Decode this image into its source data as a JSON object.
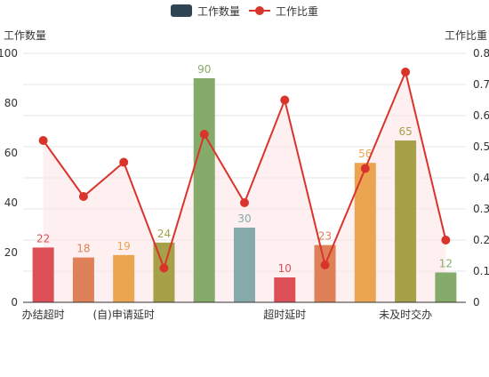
{
  "chart_data": {
    "type": "bar",
    "title": "",
    "legend_position": "top-center",
    "grid": true,
    "categories": [
      "办结超时",
      "",
      "(自)申请延时",
      "",
      "",
      "",
      "超时延时",
      "",
      "",
      "未及时交办",
      ""
    ],
    "legend": [
      {
        "name": "工作数量",
        "kind": "bar",
        "color": "#2f4554"
      },
      {
        "name": "工作比重",
        "kind": "line",
        "color": "#d9342b"
      }
    ],
    "y_left": {
      "label": "工作数量",
      "min": 0,
      "max": 100,
      "ticks": [
        "0",
        "20",
        "40",
        "60",
        "80",
        "100"
      ]
    },
    "y_right": {
      "label": "工作比重",
      "min": 0,
      "max": 0.8,
      "ticks": [
        "0",
        "0.1",
        "0.2",
        "0.3",
        "0.4",
        "0.5",
        "0.6",
        "0.7",
        "0.8"
      ]
    },
    "series": [
      {
        "name": "工作数量",
        "type": "bar",
        "axis": "left",
        "values": [
          22,
          18,
          19,
          24,
          90,
          30,
          10,
          23,
          56,
          65,
          12
        ],
        "labels": [
          "22",
          "18",
          "19",
          "24",
          "90",
          "30",
          "10",
          "23",
          "56",
          "65",
          "12"
        ],
        "colors": [
          "#dd4f57",
          "#df8158",
          "#eba450",
          "#a6a048",
          "#85ab6a",
          "#86a9aa",
          "#dd4f57",
          "#df8158",
          "#eba450",
          "#a6a048",
          "#85ab6a"
        ]
      },
      {
        "name": "工作比重",
        "type": "line",
        "axis": "right",
        "area": true,
        "color": "#d9342b",
        "area_color": "#fde5e6",
        "values": [
          0.52,
          0.34,
          0.45,
          0.11,
          0.54,
          0.32,
          0.65,
          0.12,
          0.43,
          0.74,
          0.2
        ]
      }
    ]
  }
}
